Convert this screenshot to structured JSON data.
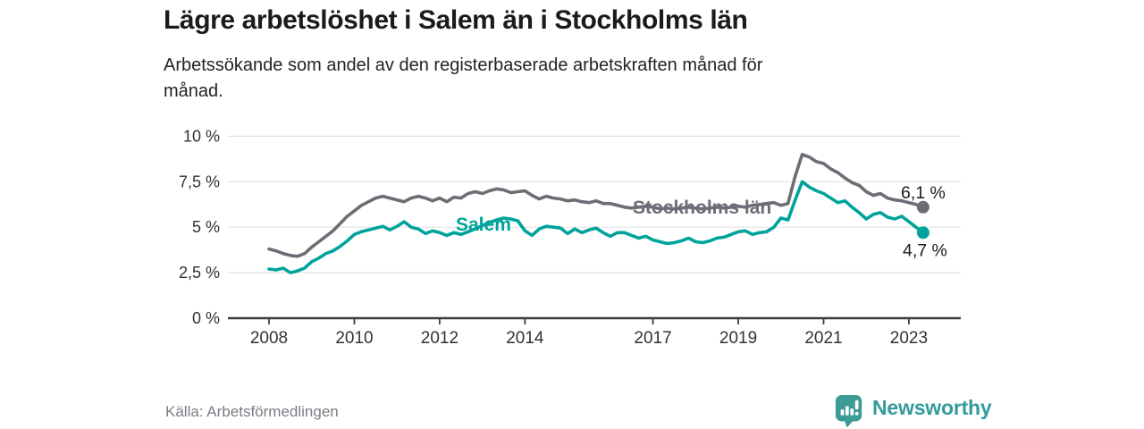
{
  "header": {
    "title": "Lägre arbetslöshet i Salem än i Stockholms län",
    "subtitle_line1": "Arbetssökande som andel av den registerbaserade arbetskraften månad för",
    "subtitle_line2": "månad."
  },
  "chart_data": {
    "type": "line",
    "title": "Lägre arbetslöshet i Salem än i Stockholms län",
    "subtitle": "Arbetssökande som andel av den registerbaserade arbetskraften månad för månad.",
    "xlabel": "",
    "ylabel": "%",
    "ylim": [
      0,
      10
    ],
    "grid": true,
    "legend_position": "inline-labels",
    "x": {
      "start": 2008.0,
      "step_years": 0.16667,
      "end": 2023.33,
      "unit": "decimal-year"
    },
    "yticks": [
      {
        "value": 0,
        "label": "0 %"
      },
      {
        "value": 2.5,
        "label": "2,5 %"
      },
      {
        "value": 5,
        "label": "5 %"
      },
      {
        "value": 7.5,
        "label": "7,5 %"
      },
      {
        "value": 10,
        "label": "10 %"
      }
    ],
    "xticks": [
      {
        "value": 2008,
        "label": "2008"
      },
      {
        "value": 2010,
        "label": "2010"
      },
      {
        "value": 2012,
        "label": "2012"
      },
      {
        "value": 2014,
        "label": "2014"
      },
      {
        "value": 2017,
        "label": "2017"
      },
      {
        "value": 2019,
        "label": "2019"
      },
      {
        "value": 2021,
        "label": "2021"
      },
      {
        "value": 2023,
        "label": "2023"
      }
    ],
    "series": [
      {
        "name": "Stockholms län",
        "color": "#6d6d76",
        "end_label": "6,1 %",
        "end_value": 6.1,
        "values": [
          3.8,
          3.7,
          3.55,
          3.45,
          3.4,
          3.55,
          3.9,
          4.2,
          4.5,
          4.8,
          5.2,
          5.6,
          5.9,
          6.2,
          6.4,
          6.6,
          6.7,
          6.6,
          6.5,
          6.4,
          6.6,
          6.7,
          6.6,
          6.45,
          6.6,
          6.4,
          6.65,
          6.6,
          6.85,
          6.95,
          6.85,
          7.0,
          7.1,
          7.05,
          6.9,
          6.95,
          7.0,
          6.75,
          6.55,
          6.7,
          6.6,
          6.55,
          6.45,
          6.5,
          6.4,
          6.35,
          6.45,
          6.3,
          6.3,
          6.2,
          6.1,
          6.05,
          6.1,
          6.15,
          6.1,
          6.0,
          6.05,
          6.0,
          6.05,
          6.1,
          6.05,
          6.0,
          6.05,
          6.1,
          6.05,
          6.1,
          6.15,
          6.1,
          6.2,
          6.25,
          6.3,
          6.35,
          6.2,
          6.3,
          7.8,
          9.0,
          8.85,
          8.6,
          8.5,
          8.2,
          8.0,
          7.7,
          7.45,
          7.3,
          6.95,
          6.75,
          6.85,
          6.6,
          6.5,
          6.45,
          6.35,
          6.25,
          6.1
        ]
      },
      {
        "name": "Salem",
        "color": "#00a39b",
        "end_label": "4,7 %",
        "end_value": 4.7,
        "values": [
          2.7,
          2.65,
          2.75,
          2.5,
          2.6,
          2.75,
          3.1,
          3.3,
          3.55,
          3.7,
          3.95,
          4.25,
          4.6,
          4.75,
          4.85,
          4.95,
          5.05,
          4.85,
          5.05,
          5.3,
          5.0,
          4.9,
          4.65,
          4.8,
          4.7,
          4.55,
          4.7,
          4.6,
          4.75,
          4.9,
          5.1,
          5.25,
          5.4,
          5.5,
          5.45,
          5.35,
          4.8,
          4.55,
          4.9,
          5.05,
          5.0,
          4.95,
          4.65,
          4.9,
          4.7,
          4.85,
          4.95,
          4.7,
          4.5,
          4.7,
          4.7,
          4.55,
          4.4,
          4.5,
          4.3,
          4.2,
          4.1,
          4.15,
          4.25,
          4.4,
          4.2,
          4.15,
          4.25,
          4.4,
          4.45,
          4.6,
          4.75,
          4.8,
          4.6,
          4.7,
          4.75,
          5.0,
          5.5,
          5.4,
          6.5,
          7.5,
          7.2,
          7.0,
          6.85,
          6.6,
          6.35,
          6.45,
          6.1,
          5.8,
          5.45,
          5.7,
          5.8,
          5.55,
          5.45,
          5.6,
          5.3,
          5.0,
          4.7
        ]
      }
    ]
  },
  "footer": {
    "source": "Källa: Arbetsförmedlingen",
    "brand": "Newsworthy",
    "brand_color": "#349a9a",
    "brand_icon": "newsworthy-chart-bubble-icon"
  }
}
